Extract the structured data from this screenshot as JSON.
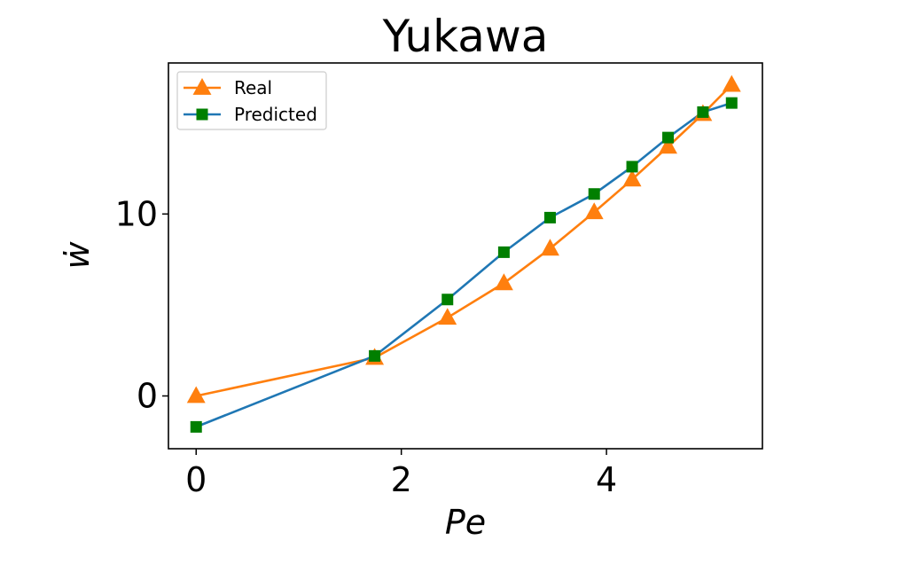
{
  "chart_data": {
    "type": "line",
    "title": "Yukawa",
    "xlabel": "Pe",
    "ylabel": "ẇ",
    "xlim": [
      -0.27,
      5.52
    ],
    "ylim": [
      -2.9,
      18.3
    ],
    "xticks": [
      0,
      2,
      4
    ],
    "yticks": [
      0,
      10
    ],
    "grid": false,
    "legend_position": "top-left",
    "series": [
      {
        "name": "Real",
        "color": "#ff7f0e",
        "marker": "triangle",
        "x": [
          0,
          1.74,
          2.45,
          3.0,
          3.45,
          3.88,
          4.25,
          4.6,
          4.94,
          5.22
        ],
        "y": [
          0.0,
          2.1,
          4.3,
          6.2,
          8.1,
          10.1,
          11.9,
          13.7,
          15.5,
          17.1
        ]
      },
      {
        "name": "Predicted",
        "color": "#1f77b4",
        "marker_color": "#007f00",
        "marker": "square",
        "x": [
          0,
          1.74,
          2.45,
          3.0,
          3.45,
          3.88,
          4.25,
          4.6,
          4.94,
          5.22
        ],
        "y": [
          -1.7,
          2.2,
          5.3,
          7.9,
          9.8,
          11.1,
          12.6,
          14.2,
          15.6,
          16.1
        ]
      }
    ]
  }
}
